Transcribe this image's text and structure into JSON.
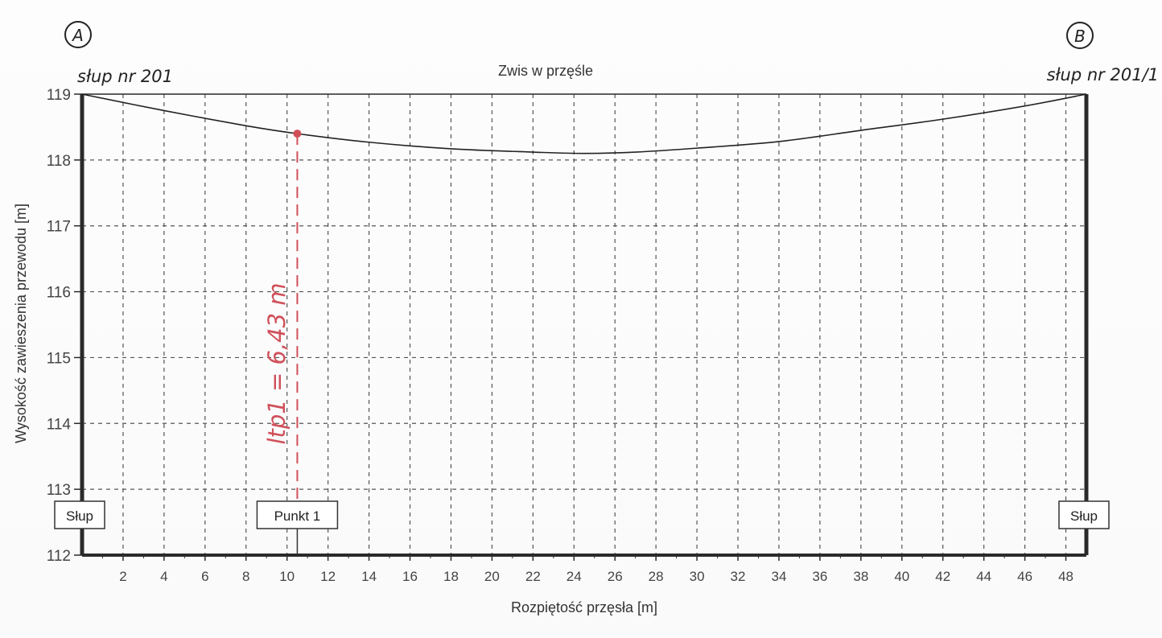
{
  "chart_data": {
    "type": "line",
    "title": "Zwis w przęśle",
    "xlabel": "Rozpiętość przęsła [m]",
    "ylabel": "Wysokość zawieszenia przewodu [m]",
    "xlim": [
      0,
      49
    ],
    "ylim": [
      112,
      119
    ],
    "x_ticks": [
      "2",
      "4",
      "6",
      "8",
      "10",
      "12",
      "14",
      "16",
      "18",
      "20",
      "22",
      "24",
      "26",
      "28",
      "30",
      "32",
      "34",
      "36",
      "38",
      "40",
      "42",
      "44",
      "46",
      "48"
    ],
    "y_ticks": [
      "112",
      "113",
      "114",
      "115",
      "116",
      "117",
      "118",
      "119"
    ],
    "grid": true,
    "series": [
      {
        "x": [
          0,
          4,
          8,
          10.5,
          14,
          18,
          22,
          24.5,
          27,
          30,
          34,
          38,
          42,
          46,
          49
        ],
        "y": [
          119.0,
          118.75,
          118.52,
          118.4,
          118.27,
          118.17,
          118.12,
          118.1,
          118.12,
          118.18,
          118.28,
          118.45,
          118.62,
          118.82,
          119.0
        ]
      }
    ],
    "markers": [
      {
        "label": "Słup",
        "x": 0
      },
      {
        "label": "Punkt 1",
        "x": 10.5
      },
      {
        "label": "Słup",
        "x": 49
      }
    ],
    "annotations": {
      "left_pole_letter": "A",
      "right_pole_letter": "B",
      "left_pole_name": "słup nr 201",
      "right_pole_name": "słup nr 201/1",
      "point_height_note": "ltp1 = 6,43 m",
      "point_x": 10.5,
      "point_y": 118.4
    },
    "colors": {
      "curve": "#222222",
      "frame": "#2a2a2a",
      "grid": "#555555",
      "handwriting": "#222222",
      "red_annotation": "#d0505a"
    }
  }
}
